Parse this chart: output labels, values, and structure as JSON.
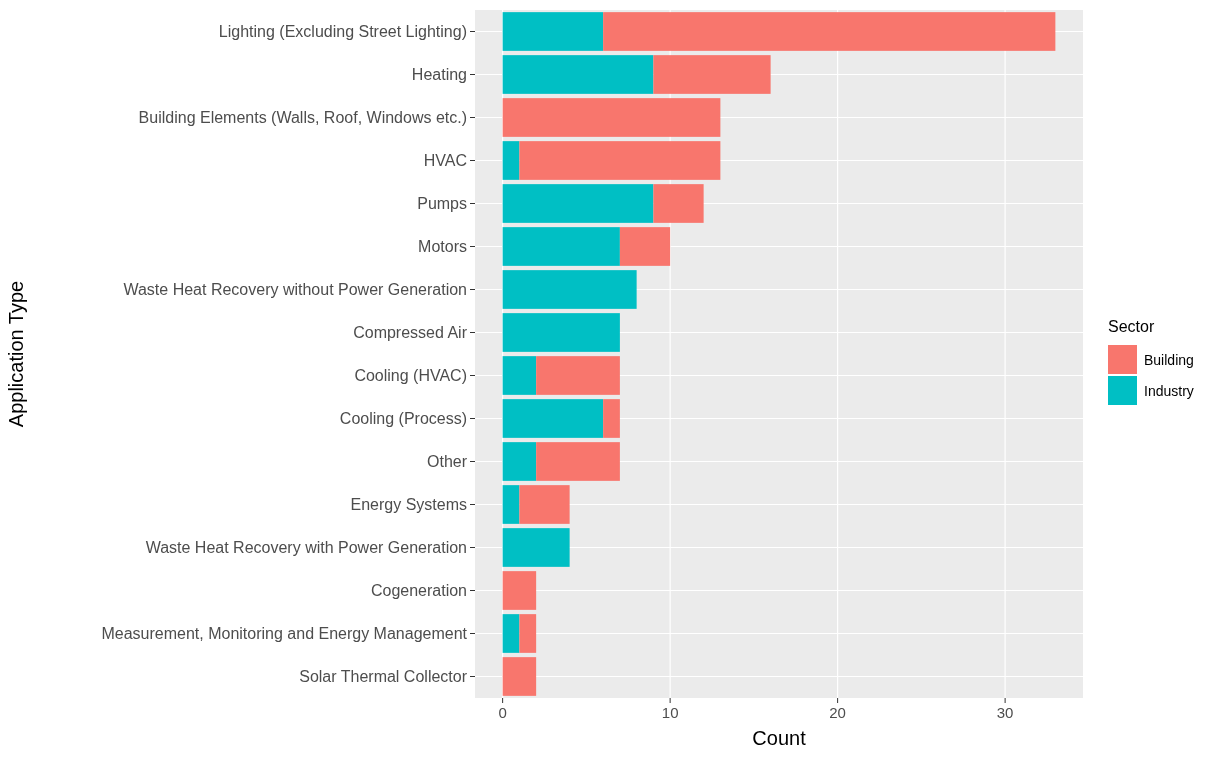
{
  "chart_data": {
    "type": "bar",
    "orientation": "horizontal",
    "stacked": true,
    "xlabel": "Count",
    "ylabel": "Application Type",
    "legend_title": "Sector",
    "legend": "right",
    "grid": true,
    "categories": [
      "Lighting (Excluding Street Lighting)",
      "Heating",
      "Building Elements (Walls, Roof, Windows etc.)",
      "HVAC",
      "Pumps",
      "Motors",
      "Waste Heat Recovery without Power Generation",
      "Compressed Air",
      "Cooling (HVAC)",
      "Cooling (Process)",
      "Other",
      "Energy Systems",
      "Waste Heat Recovery with Power Generation",
      "Cogeneration",
      "Measurement, Monitoring and Energy Management",
      "Solar Thermal Collector"
    ],
    "series": [
      {
        "name": "Industry",
        "color": "#00bfc4",
        "values": [
          6,
          9,
          0,
          1,
          9,
          7,
          8,
          7,
          2,
          6,
          2,
          1,
          4,
          0,
          1,
          0
        ]
      },
      {
        "name": "Building",
        "color": "#f8766d",
        "values": [
          27,
          7,
          13,
          12,
          3,
          3,
          0,
          0,
          5,
          1,
          5,
          3,
          0,
          2,
          1,
          2
        ]
      }
    ],
    "xlim": [
      -1.65,
      34.65
    ],
    "xticks": [
      0,
      10,
      20,
      30
    ]
  }
}
